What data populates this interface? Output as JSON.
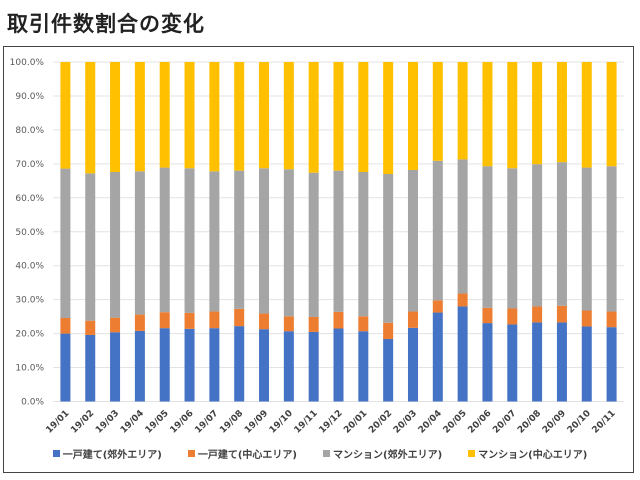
{
  "title": "取引件数割合の変化",
  "chart_data": {
    "type": "bar",
    "stacked": true,
    "percent_stacked": true,
    "title": "取引件数割合の変化",
    "xlabel": "",
    "ylabel": "",
    "ylim": [
      0,
      100
    ],
    "yticks": [
      "0.0%",
      "10.0%",
      "20.0%",
      "30.0%",
      "40.0%",
      "50.0%",
      "60.0%",
      "70.0%",
      "80.0%",
      "90.0%",
      "100.0%"
    ],
    "grid": true,
    "legend_position": "bottom",
    "categories": [
      "19/01",
      "19/02",
      "19/03",
      "19/04",
      "19/05",
      "19/06",
      "19/07",
      "19/08",
      "19/09",
      "19/10",
      "19/11",
      "19/12",
      "20/01",
      "20/02",
      "20/03",
      "20/04",
      "20/05",
      "20/06",
      "20/07",
      "20/08",
      "20/09",
      "20/10",
      "20/11"
    ],
    "series": [
      {
        "name": "一戸建て(郊外エリア)",
        "color": "#4472C4",
        "values": [
          20.0,
          19.6,
          20.4,
          20.8,
          21.6,
          21.4,
          21.6,
          22.2,
          21.3,
          20.7,
          20.5,
          21.5,
          20.7,
          18.4,
          21.7,
          26.2,
          28.0,
          23.1,
          22.7,
          23.3,
          23.3,
          22.1,
          21.9
        ]
      },
      {
        "name": "一戸建て(中心エリア)",
        "color": "#ED7D31",
        "values": [
          4.6,
          4.2,
          4.3,
          4.8,
          4.7,
          4.7,
          4.9,
          5.1,
          4.6,
          4.4,
          4.4,
          4.9,
          4.4,
          4.8,
          4.8,
          3.6,
          3.8,
          4.5,
          4.7,
          4.7,
          4.9,
          4.7,
          4.6
        ]
      },
      {
        "name": "マンション(郊外エリア)",
        "color": "#A5A5A5",
        "values": [
          44.0,
          43.4,
          42.9,
          42.2,
          42.6,
          42.6,
          41.3,
          40.7,
          42.8,
          43.3,
          42.5,
          41.6,
          42.5,
          43.8,
          41.7,
          41.1,
          39.5,
          41.7,
          41.3,
          41.9,
          42.3,
          42.1,
          42.8
        ]
      },
      {
        "name": "マンション(中心エリア)",
        "color": "#FFC000",
        "values": [
          31.4,
          32.8,
          32.4,
          32.2,
          31.1,
          31.3,
          32.2,
          32.0,
          31.3,
          31.6,
          32.6,
          32.0,
          32.4,
          33.0,
          31.8,
          29.1,
          28.7,
          30.7,
          31.3,
          30.1,
          29.5,
          31.1,
          30.7
        ]
      }
    ]
  }
}
